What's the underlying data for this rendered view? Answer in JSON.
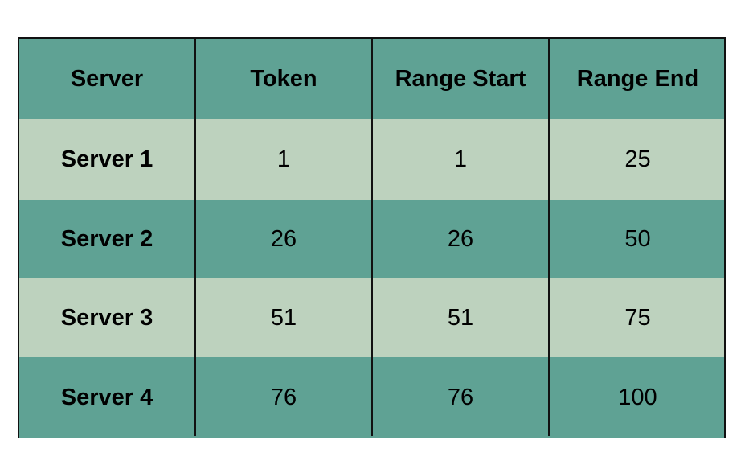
{
  "table": {
    "headers": [
      "Server",
      "Token",
      "Range Start",
      "Range End"
    ],
    "rows": [
      [
        "Server 1",
        "1",
        "1",
        "25"
      ],
      [
        "Server 2",
        "26",
        "26",
        "50"
      ],
      [
        "Server 3",
        "51",
        "51",
        "75"
      ],
      [
        "Server 4",
        "76",
        "76",
        "100"
      ]
    ]
  },
  "colors": {
    "header_bg": "#5fa294",
    "row_light": "#bdd2be",
    "row_dark": "#5fa294",
    "border": "#111111",
    "text": "#000000"
  }
}
